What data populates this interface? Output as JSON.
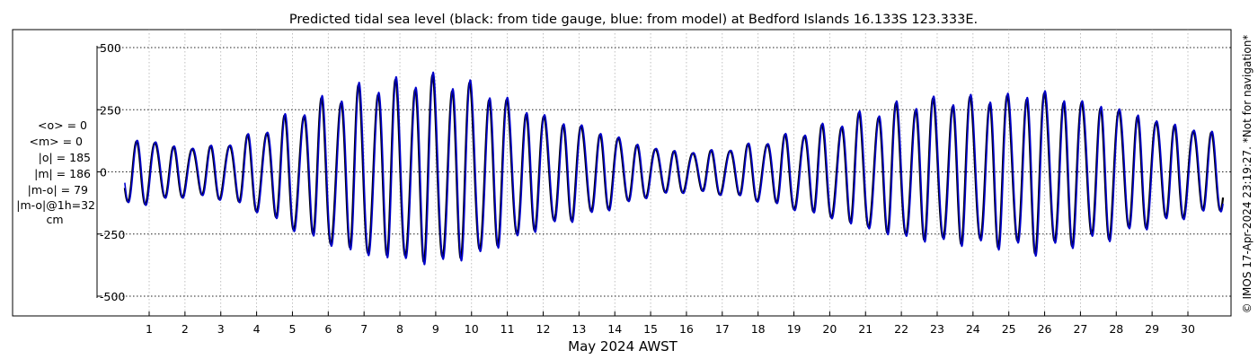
{
  "chart_data": {
    "type": "line",
    "title": "Predicted tidal sea level (black: from tide gauge, blue: from model) at Bedford Islands 16.133S 123.333E.",
    "xlabel": "May 2024 AWST",
    "ylabel": "",
    "unit": "cm",
    "xlim": [
      0.25,
      31.0
    ],
    "ylim": [
      -520,
      520
    ],
    "x_ticks": [
      1,
      2,
      3,
      4,
      5,
      6,
      7,
      8,
      9,
      10,
      11,
      12,
      13,
      14,
      15,
      16,
      17,
      18,
      19,
      20,
      21,
      22,
      23,
      24,
      25,
      26,
      27,
      28,
      29,
      30
    ],
    "x_tick_labels": [
      "1",
      "2",
      "3",
      "4",
      "5",
      "6",
      "7",
      "8",
      "9",
      "10",
      "11",
      "12",
      "13",
      "14",
      "15",
      "16",
      "17",
      "18",
      "19",
      "20",
      "21",
      "22",
      "23",
      "24",
      "25",
      "26",
      "27",
      "28",
      "29",
      "30"
    ],
    "y_ticks": [
      -500,
      -250,
      0,
      250,
      500
    ],
    "y_tick_labels": [
      "-500",
      "-250",
      "0",
      "250",
      "500"
    ],
    "grid": true,
    "legend": "none",
    "stats": [
      "<o> = 0",
      "<m> = 0",
      "|o| = 185",
      "|m| = 186",
      "|m-o| = 79",
      "|m-o|@1h=32",
      "cm"
    ],
    "side_note": "© IMOS 17-Apr-2024 23:19:27.  *Not for navigation*",
    "model": {
      "semidiurnal_period_days": 0.5175,
      "amplitude_envelope_days": [
        0.3,
        1.0,
        2.0,
        3.0,
        4.0,
        5.0,
        6.0,
        7.0,
        8.0,
        8.8,
        10.0,
        11.0,
        12.0,
        13.0,
        14.0,
        15.0,
        16.0,
        17.0,
        18.0,
        19.0,
        20.0,
        21.0,
        22.0,
        23.0,
        24.0,
        25.0,
        25.8,
        27.0,
        28.0,
        29.0,
        30.0,
        31.0
      ],
      "amplitude_envelope_cm": [
        150,
        140,
        110,
        120,
        175,
        260,
        330,
        380,
        400,
        420,
        390,
        320,
        250,
        210,
        160,
        110,
        90,
        100,
        130,
        170,
        210,
        260,
        300,
        320,
        330,
        340,
        360,
        320,
        290,
        240,
        200,
        170
      ]
    },
    "series": [
      {
        "name": "tide gauge",
        "color": "#000000",
        "stroke_width": 2.2,
        "phase_shift_days": 0.0,
        "gain": 1.0
      },
      {
        "name": "model",
        "color": "#0000cc",
        "stroke_width": 1.6,
        "phase_shift_days": 0.018,
        "gain": 1.03
      }
    ]
  }
}
